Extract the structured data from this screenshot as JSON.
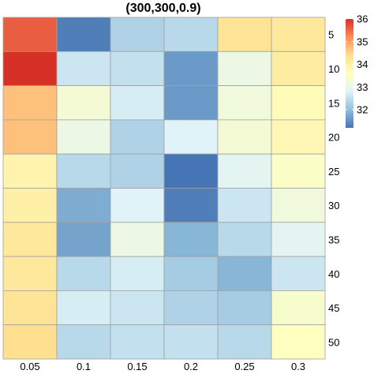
{
  "chart_data": {
    "type": "heatmap",
    "title": "(300,300,0.9)",
    "xlabel": "",
    "ylabel": "",
    "x_categories": [
      "0.05",
      "0.1",
      "0.15",
      "0.2",
      "0.25",
      "0.3"
    ],
    "y_categories": [
      "5",
      "10",
      "15",
      "20",
      "25",
      "30",
      "35",
      "40",
      "45",
      "50"
    ],
    "values": [
      [
        35.6,
        31.3,
        32.3,
        32.4,
        34.3,
        34.2
      ],
      [
        36.0,
        32.6,
        32.5,
        31.6,
        33.1,
        34.1
      ],
      [
        34.7,
        33.3,
        32.7,
        31.6,
        33.2,
        33.7
      ],
      [
        34.7,
        33.1,
        32.3,
        32.8,
        33.3,
        33.8
      ],
      [
        33.9,
        32.4,
        32.3,
        31.2,
        32.9,
        33.5
      ],
      [
        34.0,
        31.8,
        32.8,
        31.3,
        32.6,
        33.2
      ],
      [
        34.2,
        31.7,
        33.1,
        31.9,
        32.4,
        32.9
      ],
      [
        34.2,
        32.4,
        32.7,
        32.2,
        31.9,
        32.6
      ],
      [
        34.3,
        32.7,
        32.6,
        32.3,
        32.2,
        33.4
      ],
      [
        34.4,
        32.4,
        32.5,
        32.5,
        32.4,
        33.6
      ]
    ],
    "colorbar": {
      "min": 31.2,
      "max": 36.0,
      "ticks": [
        32,
        33,
        34,
        35,
        36
      ]
    },
    "legend_position": "top-right",
    "colors": {
      "scale": [
        "#4575b4",
        "#91bfdb",
        "#e0f3f8",
        "#ffffbf",
        "#fee090",
        "#fc8d59",
        "#d73027"
      ],
      "cell_border": "#a0a0a0"
    }
  }
}
